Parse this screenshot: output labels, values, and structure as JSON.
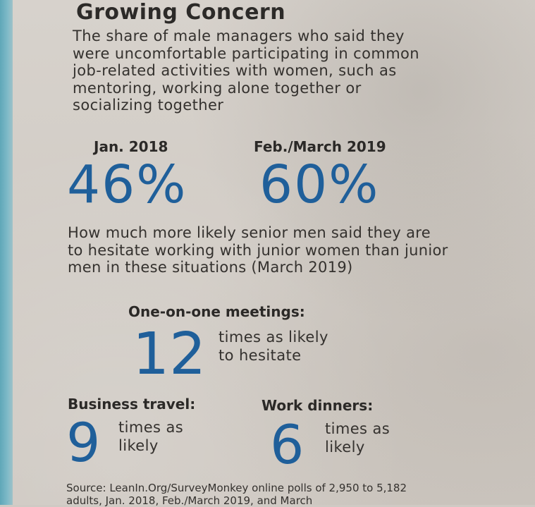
{
  "title": "Growing Concern",
  "intro": "The share of male managers who said they were uncomfortable participating in common job-related activities with women, such as mentoring, working alone together or socializing together",
  "stats": [
    {
      "label": "Jan. 2018",
      "value": "46%"
    },
    {
      "label": "Feb./March 2019",
      "value": "60%"
    }
  ],
  "hesitation_intro": "How much more likely senior men said they are to hesitate working with junior women than junior men in these situations (March 2019)",
  "situations": {
    "one_on_one": {
      "heading": "One-on-one meetings:",
      "number": "12",
      "line1": "times as likely",
      "line2": "to hesitate"
    },
    "business_travel": {
      "heading": "Business travel:",
      "number": "9",
      "line1": "times as",
      "line2": "likely"
    },
    "work_dinners": {
      "heading": "Work dinners:",
      "number": "6",
      "line1": "times as",
      "line2": "likely"
    }
  },
  "source": "Source: LeanIn.Org/SurveyMonkey online polls of 2,950 to 5,182 adults, Jan. 2018, Feb./March 2019, and March"
}
